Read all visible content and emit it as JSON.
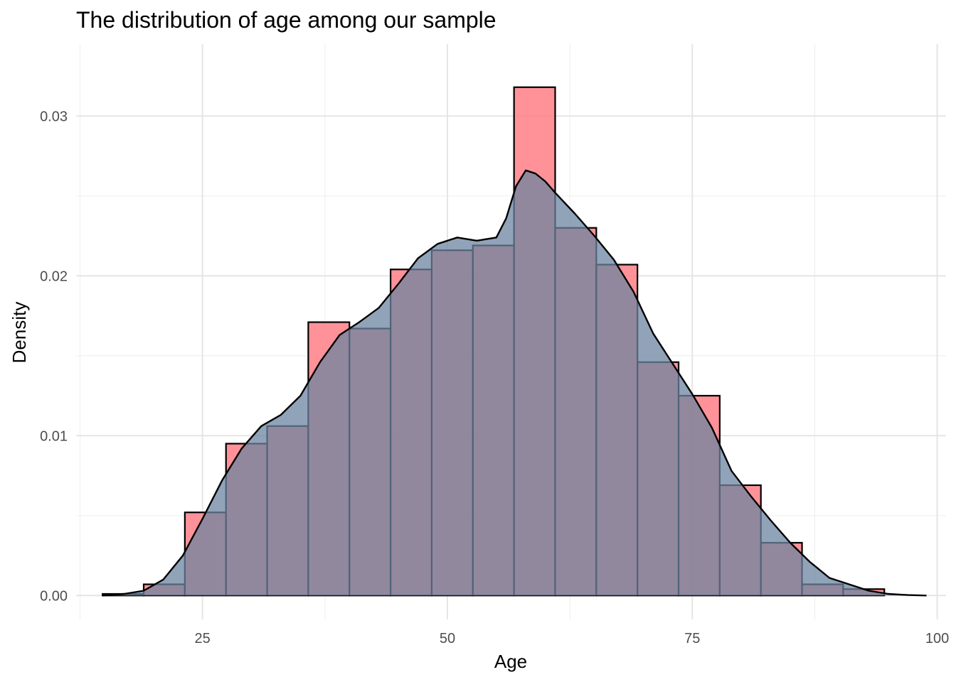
{
  "chart_data": {
    "type": "bar",
    "title": "The distribution of age among our sample",
    "xlabel": "Age",
    "ylabel": "Density",
    "xlim": [
      12.1,
      100.9
    ],
    "ylim": [
      -0.0015,
      0.0345
    ],
    "x_ticks": [
      25,
      50,
      75,
      100
    ],
    "x_tick_labels": [
      "25",
      "50",
      "75",
      "100"
    ],
    "y_ticks": [
      0.0,
      0.01,
      0.02,
      0.03
    ],
    "y_tick_labels": [
      "0.00",
      "0.01",
      "0.02",
      "0.03"
    ],
    "grid": true,
    "histogram": {
      "bin_width": 4.2,
      "bins": [
        {
          "x0": 14.8,
          "x1": 19.0,
          "value": 0.0001
        },
        {
          "x0": 19.0,
          "x1": 23.2,
          "value": 0.0007
        },
        {
          "x0": 23.2,
          "x1": 27.4,
          "value": 0.0052
        },
        {
          "x0": 27.4,
          "x1": 31.6,
          "value": 0.0095
        },
        {
          "x0": 31.6,
          "x1": 35.8,
          "value": 0.0106
        },
        {
          "x0": 35.8,
          "x1": 40.0,
          "value": 0.0171
        },
        {
          "x0": 40.0,
          "x1": 44.2,
          "value": 0.0167
        },
        {
          "x0": 44.2,
          "x1": 48.4,
          "value": 0.0204
        },
        {
          "x0": 48.4,
          "x1": 52.6,
          "value": 0.0216
        },
        {
          "x0": 52.6,
          "x1": 56.8,
          "value": 0.0219
        },
        {
          "x0": 56.8,
          "x1": 61.0,
          "value": 0.0318
        },
        {
          "x0": 61.0,
          "x1": 65.2,
          "value": 0.023
        },
        {
          "x0": 65.2,
          "x1": 69.4,
          "value": 0.0207
        },
        {
          "x0": 69.4,
          "x1": 73.6,
          "value": 0.0146
        },
        {
          "x0": 73.6,
          "x1": 77.8,
          "value": 0.0125
        },
        {
          "x0": 77.8,
          "x1": 82.0,
          "value": 0.0069
        },
        {
          "x0": 82.0,
          "x1": 86.2,
          "value": 0.0033
        },
        {
          "x0": 86.2,
          "x1": 90.4,
          "value": 0.0007
        },
        {
          "x0": 90.4,
          "x1": 94.6,
          "value": 0.0004
        }
      ],
      "fill_color": "#ff7f87",
      "fill_opacity": 0.85,
      "stroke_color": "#000000"
    },
    "density": {
      "x": [
        14.8,
        17,
        19,
        21,
        23,
        25,
        27,
        29,
        31,
        33,
        35,
        37,
        39,
        41,
        43,
        45,
        47,
        49,
        51,
        53,
        55,
        56,
        57,
        58,
        59,
        60,
        61,
        63,
        65,
        67,
        69,
        71,
        73,
        75,
        77,
        79,
        81,
        83,
        85,
        87,
        89,
        91,
        93,
        95,
        97,
        98.9
      ],
      "y": [
        0.0,
        0.0001,
        0.0003,
        0.001,
        0.0025,
        0.0048,
        0.0072,
        0.0092,
        0.0106,
        0.0113,
        0.0125,
        0.0146,
        0.0163,
        0.0171,
        0.018,
        0.0195,
        0.0211,
        0.022,
        0.0224,
        0.0222,
        0.0224,
        0.0236,
        0.0256,
        0.0266,
        0.0264,
        0.0259,
        0.0252,
        0.0239,
        0.0225,
        0.021,
        0.019,
        0.0164,
        0.0145,
        0.0126,
        0.0105,
        0.0078,
        0.0062,
        0.0047,
        0.0033,
        0.0021,
        0.0011,
        0.0007,
        0.0003,
        0.0001,
        3e-05,
        0.0
      ],
      "fill_color": "#6c84a0",
      "fill_opacity": 0.75,
      "stroke_color": "#000000"
    }
  }
}
